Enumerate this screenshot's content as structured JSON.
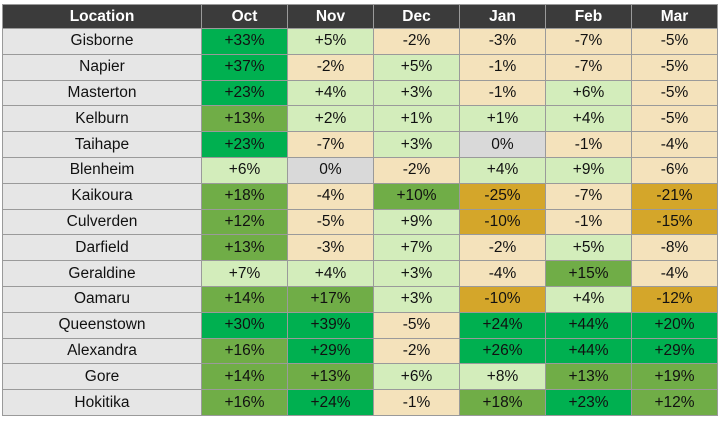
{
  "palette": {
    "zero": "#d9d9d9",
    "negative_light": "#f4e2bb",
    "negative_strong": "#d4a62a",
    "positive_light": "#d3edbb",
    "positive_medium": "#70ad47",
    "positive_strong": "#00b050"
  },
  "headers": [
    "Location",
    "Oct",
    "Nov",
    "Dec",
    "Jan",
    "Feb",
    "Mar"
  ],
  "rows": [
    {
      "location": "Gisborne",
      "values": [
        "+33%",
        "+5%",
        "-2%",
        "-3%",
        "-7%",
        "-5%"
      ]
    },
    {
      "location": "Napier",
      "values": [
        "+37%",
        "-2%",
        "+5%",
        "-1%",
        "-7%",
        "-5%"
      ]
    },
    {
      "location": "Masterton",
      "values": [
        "+23%",
        "+4%",
        "+3%",
        "-1%",
        "+6%",
        "-5%"
      ]
    },
    {
      "location": "Kelburn",
      "values": [
        "+13%",
        "+2%",
        "+1%",
        "+1%",
        "+4%",
        "-5%"
      ]
    },
    {
      "location": "Taihape",
      "values": [
        "+23%",
        "-7%",
        "+3%",
        "0%",
        "-1%",
        "-4%"
      ]
    },
    {
      "location": "Blenheim",
      "values": [
        "+6%",
        "0%",
        "-2%",
        "+4%",
        "+9%",
        "-6%"
      ]
    },
    {
      "location": "Kaikoura",
      "values": [
        "+18%",
        "-4%",
        "+10%",
        "-25%",
        "-7%",
        "-21%"
      ]
    },
    {
      "location": "Culverden",
      "values": [
        "+12%",
        "-5%",
        "+9%",
        "-10%",
        "-1%",
        "-15%"
      ]
    },
    {
      "location": "Darfield",
      "values": [
        "+13%",
        "-3%",
        "+7%",
        "-2%",
        "+5%",
        "-8%"
      ]
    },
    {
      "location": "Geraldine",
      "values": [
        "+7%",
        "+4%",
        "+3%",
        "-4%",
        "+15%",
        "-4%"
      ]
    },
    {
      "location": "Oamaru",
      "values": [
        "+14%",
        "+17%",
        "+3%",
        "-10%",
        "+4%",
        "-12%"
      ]
    },
    {
      "location": "Queenstown",
      "values": [
        "+30%",
        "+39%",
        "-5%",
        "+24%",
        "+44%",
        "+20%"
      ]
    },
    {
      "location": "Alexandra",
      "values": [
        "+16%",
        "+29%",
        "-2%",
        "+26%",
        "+44%",
        "+29%"
      ]
    },
    {
      "location": "Gore",
      "values": [
        "+14%",
        "+13%",
        "+6%",
        "+8%",
        "+13%",
        "+19%"
      ]
    },
    {
      "location": "Hokitika",
      "values": [
        "+16%",
        "+24%",
        "-1%",
        "+18%",
        "+23%",
        "+12%"
      ]
    }
  ]
}
